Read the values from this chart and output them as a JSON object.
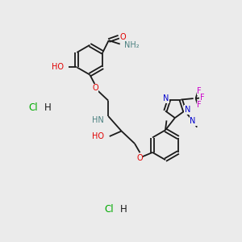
{
  "background_color": "#ebebeb",
  "bond_color": "#1a1a1a",
  "atom_colors": {
    "O": "#e00000",
    "N_teal": "#4a8080",
    "NH2": "#4a8080",
    "NH": "#4a8080",
    "N_blue": "#0000cc",
    "F": "#cc00cc",
    "Cl": "#00aa00",
    "H_black": "#1a1a1a"
  },
  "font_size": 7.0,
  "bond_lw": 1.3,
  "fig_width": 3.0,
  "fig_height": 3.0,
  "dpi": 100,
  "xlim": [
    0,
    10
  ],
  "ylim": [
    0,
    10
  ]
}
